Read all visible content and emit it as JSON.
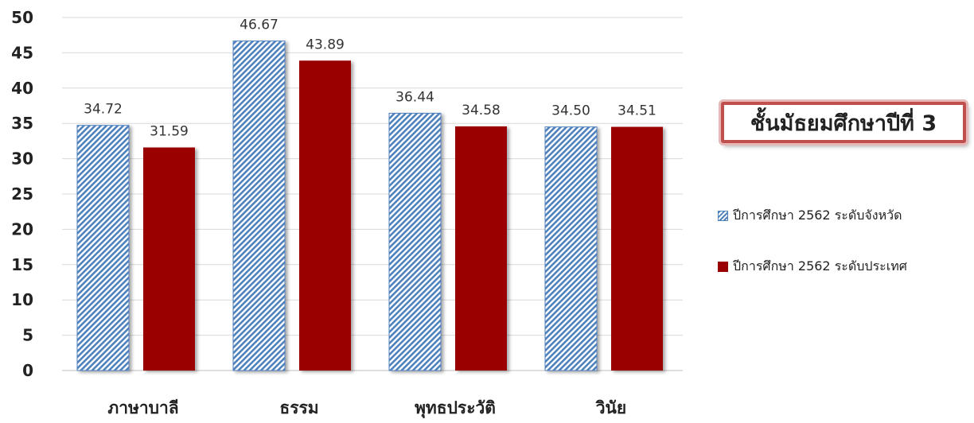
{
  "chart_data": {
    "type": "bar",
    "categories": [
      "ภาษาบาลี",
      "ธรรม",
      "พุทธประวัติ",
      "วินัย"
    ],
    "series": [
      {
        "name": "ปีการศึกษา 2562 ระดับจังหวัด",
        "values": [
          34.72,
          46.67,
          36.44,
          34.5
        ],
        "labels": [
          "34.72",
          "46.67",
          "36.44",
          "34.50"
        ],
        "color": "#4f81bd",
        "pattern": "diagonal-stripes"
      },
      {
        "name": "ปีการศึกษา 2562 ระดับประเทศ",
        "values": [
          31.59,
          43.89,
          34.58,
          34.51
        ],
        "labels": [
          "31.59",
          "43.89",
          "34.58",
          "34.51"
        ],
        "color": "#9b0000",
        "pattern": "solid"
      }
    ],
    "ylim": [
      0,
      50
    ],
    "yticks": [
      "0",
      "5",
      "10",
      "15",
      "20",
      "25",
      "30",
      "35",
      "40",
      "45",
      "50"
    ],
    "title": "ชั้นมัธยมศึกษาปีที่ 3",
    "legend_position": "right",
    "grid": true
  }
}
